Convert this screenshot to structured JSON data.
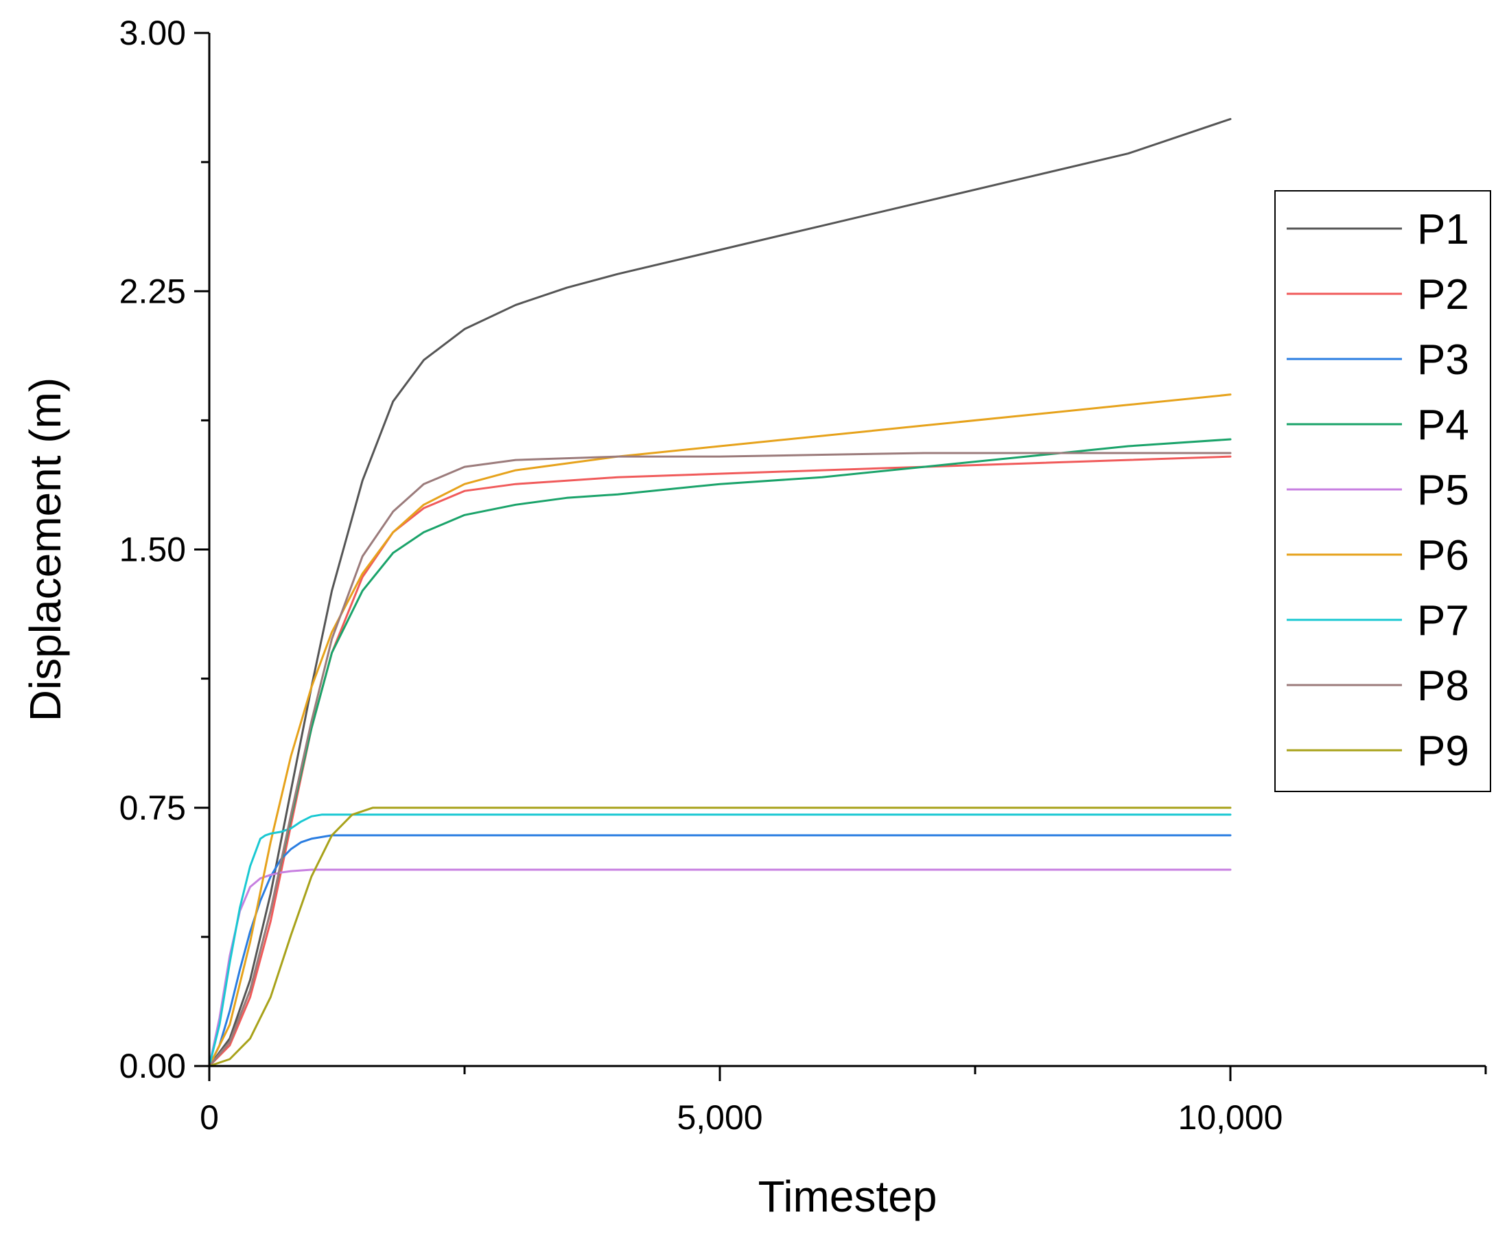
{
  "chart_data": {
    "type": "line",
    "xlabel": "Timestep",
    "ylabel": "Displacement (m)",
    "xlim": [
      0,
      12500
    ],
    "ylim": [
      0,
      3.0
    ],
    "x_ticks": [
      0,
      5000,
      10000
    ],
    "x_tick_labels": [
      "0",
      "5,000",
      "10,000"
    ],
    "x_minor_ticks": [
      2500,
      7500,
      12500
    ],
    "y_ticks": [
      0,
      0.75,
      1.5,
      2.25,
      3.0
    ],
    "y_tick_labels": [
      "0.00",
      "0.75",
      "1.50",
      "2.25",
      "3.00"
    ],
    "y_minor_ticks": [
      0.375,
      1.125,
      1.875,
      2.625
    ],
    "grid": false,
    "legend_position": "right",
    "series": [
      {
        "name": "P1",
        "color": "#555555",
        "x": [
          0,
          200,
          400,
          600,
          800,
          1000,
          1200,
          1500,
          1800,
          2100,
          2500,
          3000,
          3500,
          4000,
          5000,
          6000,
          7000,
          8000,
          9000,
          10000
        ],
        "y": [
          0,
          0.08,
          0.25,
          0.5,
          0.8,
          1.1,
          1.38,
          1.7,
          1.93,
          2.05,
          2.14,
          2.21,
          2.26,
          2.3,
          2.37,
          2.44,
          2.51,
          2.58,
          2.65,
          2.75
        ]
      },
      {
        "name": "P2",
        "color": "#f05a5a",
        "x": [
          0,
          200,
          400,
          600,
          800,
          1000,
          1200,
          1500,
          1800,
          2100,
          2500,
          3000,
          3500,
          4000,
          5000,
          6000,
          7000,
          8000,
          9000,
          10000
        ],
        "y": [
          0,
          0.06,
          0.2,
          0.42,
          0.7,
          0.98,
          1.2,
          1.42,
          1.55,
          1.62,
          1.67,
          1.69,
          1.7,
          1.71,
          1.72,
          1.73,
          1.74,
          1.75,
          1.76,
          1.77
        ]
      },
      {
        "name": "P3",
        "color": "#2a7de1",
        "x": [
          0,
          100,
          200,
          300,
          400,
          500,
          600,
          700,
          800,
          900,
          1000,
          1100,
          1200,
          1500,
          2000,
          4000,
          6000,
          8000,
          10000
        ],
        "y": [
          0,
          0.06,
          0.16,
          0.28,
          0.39,
          0.48,
          0.55,
          0.6,
          0.63,
          0.65,
          0.66,
          0.665,
          0.67,
          0.67,
          0.67,
          0.67,
          0.67,
          0.67,
          0.67
        ]
      },
      {
        "name": "P4",
        "color": "#1aa36a",
        "x": [
          0,
          200,
          400,
          600,
          800,
          1000,
          1200,
          1500,
          1800,
          2100,
          2500,
          3000,
          3500,
          4000,
          5000,
          6000,
          7000,
          8000,
          9000,
          10000
        ],
        "y": [
          0,
          0.07,
          0.22,
          0.45,
          0.72,
          0.98,
          1.2,
          1.38,
          1.49,
          1.55,
          1.6,
          1.63,
          1.65,
          1.66,
          1.69,
          1.71,
          1.74,
          1.77,
          1.8,
          1.82
        ]
      },
      {
        "name": "P5",
        "color": "#c77fe0",
        "x": [
          0,
          100,
          200,
          300,
          400,
          500,
          600,
          700,
          800,
          1000,
          1500,
          2000,
          4000,
          6000,
          8000,
          10000
        ],
        "y": [
          0,
          0.14,
          0.32,
          0.45,
          0.52,
          0.545,
          0.555,
          0.562,
          0.566,
          0.57,
          0.57,
          0.57,
          0.57,
          0.57,
          0.57,
          0.57
        ]
      },
      {
        "name": "P6",
        "color": "#e6a21b",
        "x": [
          0,
          200,
          400,
          600,
          800,
          1000,
          1200,
          1500,
          1800,
          2100,
          2500,
          3000,
          3500,
          4000,
          5000,
          6000,
          7000,
          8000,
          9000,
          10000
        ],
        "y": [
          0,
          0.12,
          0.36,
          0.65,
          0.9,
          1.1,
          1.26,
          1.43,
          1.55,
          1.63,
          1.69,
          1.73,
          1.75,
          1.77,
          1.8,
          1.83,
          1.86,
          1.89,
          1.92,
          1.95
        ]
      },
      {
        "name": "P7",
        "color": "#19c8d2",
        "x": [
          0,
          100,
          200,
          300,
          400,
          500,
          550,
          600,
          700,
          800,
          900,
          1000,
          1100,
          1500,
          2000,
          4000,
          6000,
          8000,
          10000
        ],
        "y": [
          0,
          0.12,
          0.3,
          0.46,
          0.58,
          0.66,
          0.67,
          0.675,
          0.68,
          0.69,
          0.71,
          0.725,
          0.73,
          0.73,
          0.73,
          0.73,
          0.73,
          0.73,
          0.73
        ]
      },
      {
        "name": "P8",
        "color": "#9b7b7b",
        "x": [
          0,
          200,
          400,
          600,
          800,
          1000,
          1200,
          1500,
          1800,
          2100,
          2500,
          3000,
          3500,
          4000,
          5000,
          6000,
          7000,
          8000,
          9000,
          10000
        ],
        "y": [
          0,
          0.07,
          0.22,
          0.45,
          0.73,
          1.0,
          1.24,
          1.48,
          1.61,
          1.69,
          1.74,
          1.76,
          1.765,
          1.77,
          1.77,
          1.775,
          1.78,
          1.78,
          1.78,
          1.78
        ]
      },
      {
        "name": "P9",
        "color": "#a8a21a",
        "x": [
          0,
          200,
          400,
          600,
          800,
          1000,
          1200,
          1400,
          1600,
          1800,
          2000,
          4000,
          6000,
          8000,
          10000
        ],
        "y": [
          0,
          0.02,
          0.08,
          0.2,
          0.38,
          0.55,
          0.67,
          0.73,
          0.75,
          0.75,
          0.75,
          0.75,
          0.75,
          0.75,
          0.75
        ]
      }
    ]
  }
}
